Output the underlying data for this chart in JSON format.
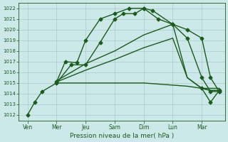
{
  "background_color": "#cce8e8",
  "grid_color": "#aacccc",
  "line_color": "#1a5c1a",
  "xlabel": "Pression niveau de la mer( hPa )",
  "ylim": [
    1011.5,
    1022.5
  ],
  "yticks": [
    1012,
    1013,
    1014,
    1015,
    1016,
    1017,
    1018,
    1019,
    1020,
    1021,
    1022
  ],
  "x_labels": [
    "Ven",
    "Mer",
    "Jeu",
    "Sam",
    "Dim",
    "Lun",
    "Mar"
  ],
  "x_positions": [
    0,
    1,
    2,
    3,
    4,
    5,
    6
  ],
  "xlim": [
    -0.3,
    6.8
  ],
  "series": [
    {
      "x": [
        0.0,
        0.25,
        0.5,
        1.0,
        1.5,
        2.0,
        2.5,
        3.0,
        3.3,
        3.7,
        4.0,
        4.3,
        5.0,
        5.5,
        6.0,
        6.3,
        6.6
      ],
      "y": [
        1012.0,
        1013.2,
        1014.2,
        1015.0,
        1016.7,
        1016.7,
        1018.8,
        1021.0,
        1021.5,
        1021.5,
        1022.0,
        1021.8,
        1020.5,
        1020.0,
        1019.2,
        1015.5,
        1014.2
      ],
      "marker": "D",
      "markersize": 2.5,
      "linewidth": 1.0
    },
    {
      "x": [
        1.0,
        1.3,
        1.7,
        2.0,
        2.5,
        3.0,
        3.5,
        4.0,
        4.5,
        5.0,
        5.5,
        6.0,
        6.3,
        6.6
      ],
      "y": [
        1015.1,
        1017.0,
        1016.9,
        1019.0,
        1021.0,
        1021.5,
        1022.0,
        1022.0,
        1021.0,
        1020.5,
        1019.2,
        1015.5,
        1014.2,
        1014.2
      ],
      "marker": "D",
      "markersize": 2.5,
      "linewidth": 1.0
    },
    {
      "x": [
        1.0,
        2.0,
        3.0,
        4.0,
        4.5,
        5.0,
        5.5,
        6.0,
        6.3,
        6.6
      ],
      "y": [
        1015.0,
        1015.0,
        1015.0,
        1015.0,
        1014.9,
        1014.8,
        1014.7,
        1014.5,
        1014.5,
        1014.5
      ],
      "marker": null,
      "markersize": 0,
      "linewidth": 1.0
    },
    {
      "x": [
        1.0,
        2.0,
        3.0,
        4.0,
        5.0,
        5.5,
        6.0,
        6.3,
        6.6
      ],
      "y": [
        1015.1,
        1016.2,
        1017.2,
        1018.3,
        1019.2,
        1015.5,
        1014.5,
        1014.3,
        1014.3
      ],
      "marker": null,
      "markersize": 0,
      "linewidth": 1.0
    },
    {
      "x": [
        1.0,
        2.0,
        3.0,
        4.0,
        5.0,
        5.5,
        6.0,
        6.3,
        6.6
      ],
      "y": [
        1015.2,
        1016.8,
        1018.0,
        1019.5,
        1020.5,
        1015.5,
        1014.5,
        1014.3,
        1014.3
      ],
      "marker": null,
      "markersize": 0,
      "linewidth": 1.0
    }
  ],
  "right_tail": {
    "x": [
      6.0,
      6.3,
      6.6
    ],
    "y": [
      1014.5,
      1013.2,
      1014.3
    ],
    "marker": "D",
    "markersize": 2.5,
    "linewidth": 1.0
  },
  "ytick_fontsize": 5.0,
  "xtick_fontsize": 5.5,
  "xlabel_fontsize": 6.5
}
